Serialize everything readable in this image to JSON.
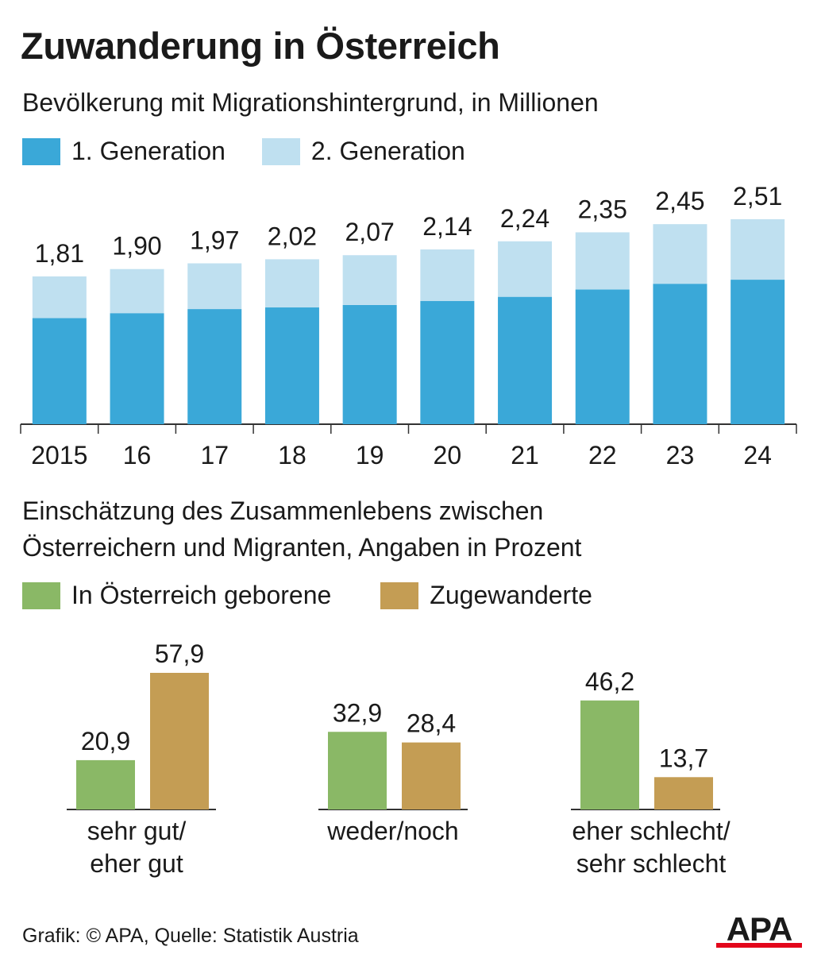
{
  "title": "Zuwanderung in Österreich",
  "top": {
    "subtitle": "Bevölkerung mit Migrationshintergrund, in Millionen",
    "legend": [
      "1. Generation",
      "2. Generation"
    ]
  },
  "bottom": {
    "subtitle_line1": "Einschätzung des Zusammenlebens zwischen",
    "subtitle_line2": "Österreichern und Migranten, Angaben in Prozent",
    "legend": [
      "In Österreich geborene",
      "Zugewanderte"
    ]
  },
  "footer": "Grafik: © APA, Quelle: Statistik Austria",
  "logo_text": "APA",
  "colors": {
    "gen1": "#3aa8d8",
    "gen2": "#bfe0f0",
    "born": "#8ab866",
    "immigrant": "#c49d54",
    "logo": "#111111",
    "logo_bar": "#e3061b"
  },
  "chart_data": [
    {
      "type": "bar",
      "stacked": true,
      "categories": [
        "2015",
        "16",
        "17",
        "18",
        "19",
        "20",
        "21",
        "22",
        "23",
        "24"
      ],
      "series": [
        {
          "name": "1. Generation",
          "values": [
            1.3,
            1.36,
            1.41,
            1.43,
            1.46,
            1.51,
            1.56,
            1.65,
            1.72,
            1.77
          ]
        },
        {
          "name": "2. Generation",
          "values": [
            0.51,
            0.54,
            0.56,
            0.59,
            0.61,
            0.63,
            0.68,
            0.7,
            0.73,
            0.74
          ]
        }
      ],
      "totals": [
        "1,81",
        "1,90",
        "1,97",
        "2,02",
        "2,07",
        "2,14",
        "2,24",
        "2,35",
        "2,45",
        "2,51"
      ],
      "ylim": [
        0,
        2.51
      ]
    },
    {
      "type": "bar",
      "categories": [
        [
          "sehr gut/",
          "eher gut"
        ],
        [
          "weder/noch"
        ],
        [
          "eher schlecht/",
          "sehr schlecht"
        ]
      ],
      "series": [
        {
          "name": "In Österreich geborene",
          "values": [
            20.9,
            32.9,
            46.2
          ],
          "labels": [
            "20,9",
            "32,9",
            "46,2"
          ]
        },
        {
          "name": "Zugewanderte",
          "values": [
            57.9,
            28.4,
            13.7
          ],
          "labels": [
            "57,9",
            "28,4",
            "13,7"
          ]
        }
      ],
      "ylim": [
        0,
        57.9
      ]
    }
  ]
}
